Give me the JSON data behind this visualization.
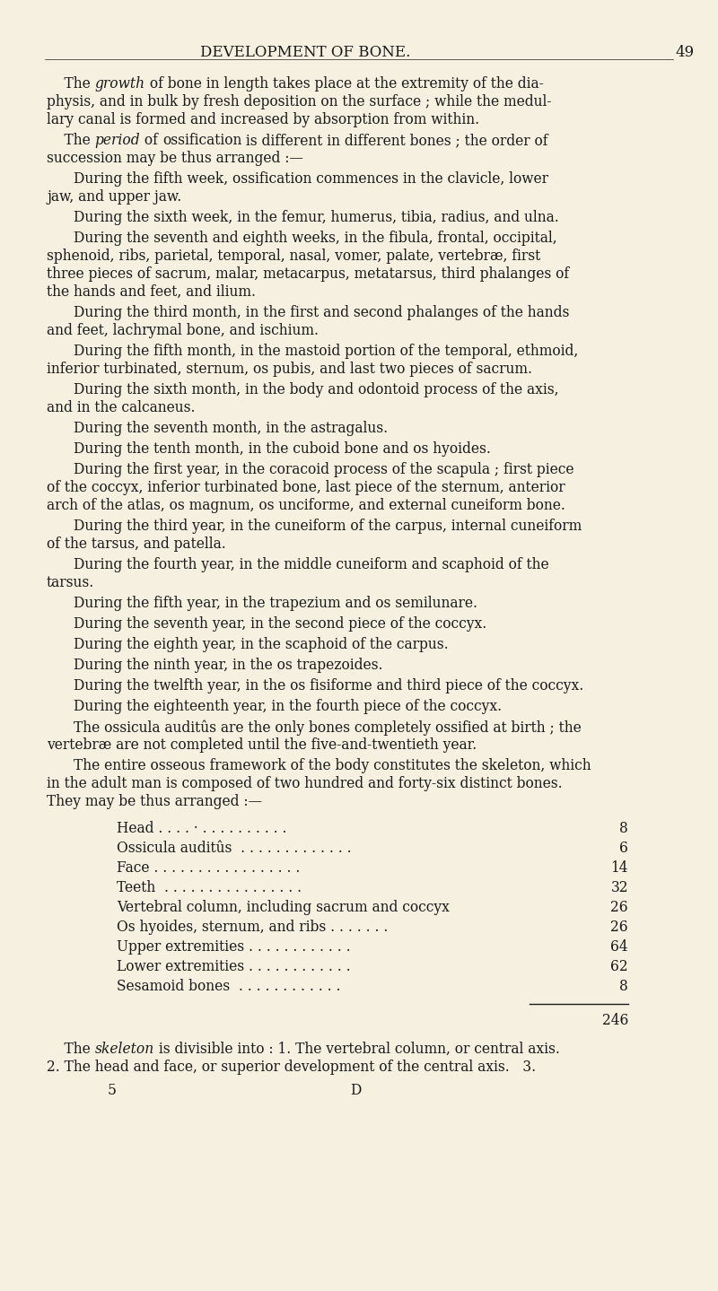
{
  "bg_color": "#f5f0e0",
  "text_color": "#1a1a1a",
  "header": "DEVELOPMENT OF BONE.",
  "page_number": "49",
  "table_rows": [
    {
      "label": "Head . . . . · . . . . . . . . . .",
      "value": "8"
    },
    {
      "label": "Ossicula auditûs  . . . . . . . . . . . . .",
      "value": "6"
    },
    {
      "label": "Face . . . . . . . . . . . . . . . . .",
      "value": "14"
    },
    {
      "label": "Teeth  . . . . . . . . . . . . . . . .",
      "value": "32"
    },
    {
      "label": "Vertebral column, including sacrum and coccyx",
      "value": "26"
    },
    {
      "label": "Os hyoides, sternum, and ribs . . . . . . .",
      "value": "26"
    },
    {
      "label": "Upper extremities . . . . . . . . . . . .",
      "value": "64"
    },
    {
      "label": "Lower extremities . . . . . . . . . . . .",
      "value": "62"
    },
    {
      "label": "Sesamoid bones  . . . . . . . . . . . .",
      "value": "8"
    }
  ],
  "table_total": "246"
}
